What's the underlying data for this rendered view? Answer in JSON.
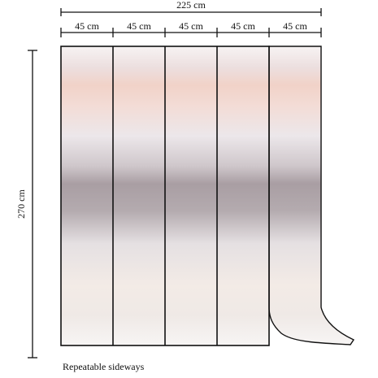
{
  "dimensions": {
    "total_width": "225 cm",
    "panel_widths": [
      "45 cm",
      "45 cm",
      "45 cm",
      "45 cm",
      "45 cm"
    ],
    "height": "270 cm"
  },
  "caption": "Repeatable sideways"
}
